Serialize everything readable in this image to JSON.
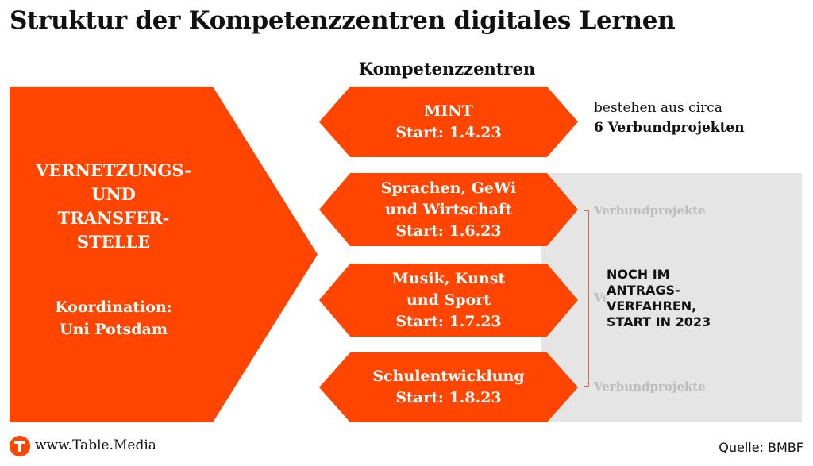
{
  "title": "Struktur der Kompetenzzentren digitales Lernen",
  "column_header": "Kompetenzzentren",
  "transfer_stelle": {
    "title_lines": [
      "VERNETZUNGS-",
      "UND",
      "TRANSFER-",
      "STELLE"
    ],
    "coordination_lines": [
      "Koordination:",
      "Uni Potsdam"
    ]
  },
  "centers": [
    {
      "lines": [
        "MINT",
        "Start: 1.4.23"
      ]
    },
    {
      "lines": [
        "Sprachen, GeWi",
        "und Wirtschaft",
        "Start: 1.6.23"
      ]
    },
    {
      "lines": [
        "Musik, Kunst",
        "und Sport",
        "Start: 1.7.23"
      ]
    },
    {
      "lines": [
        "Schulentwicklung",
        "Start: 1.8.23"
      ]
    }
  ],
  "mint_note": {
    "line1": "bestehen aus circa",
    "line2": "6 Verbundprojekten"
  },
  "ghost_label": "Verbundprojekte",
  "status_lines": [
    "NOCH IM",
    "ANTRAGS-",
    "VERFAHREN,",
    "START IN 2023"
  ],
  "footer": {
    "website": "www.Table.Media",
    "source": "Quelle: BMBF"
  },
  "colors": {
    "accent": "#ff4500",
    "band": "#e5e5e5",
    "ghost_text": "#bdbdbd"
  },
  "icons": {
    "logo": "table-media-logo-icon"
  }
}
